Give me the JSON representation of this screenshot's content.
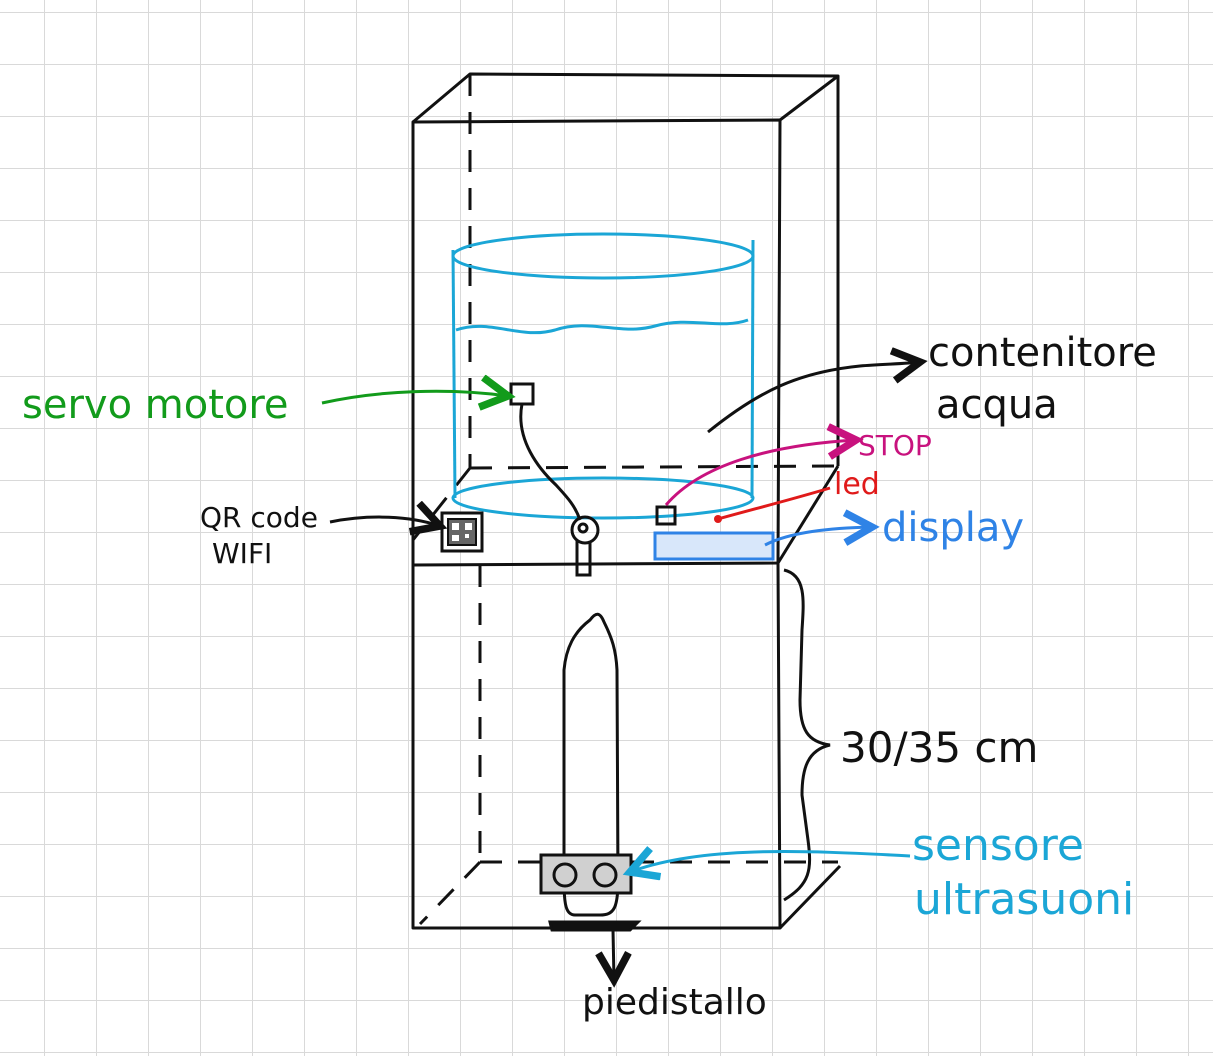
{
  "labels": {
    "servo": "servo motore",
    "container_line1": "contenitore",
    "container_line2": "acqua",
    "stop": "STOP",
    "led": "led",
    "display": "display",
    "qr_line1": "QR code",
    "qr_line2": "WIFI",
    "height": "30/35 cm",
    "sensor_line1": "sensore",
    "sensor_line2": "ultrasuoni",
    "base": "piedistallo"
  },
  "colors": {
    "ink": "#111111",
    "servo": "#129b1b",
    "water": "#1ba6d6",
    "stop": "#c8127e",
    "led": "#e01a1a",
    "display": "#2f83e6",
    "grid": "#d9d9d9"
  }
}
